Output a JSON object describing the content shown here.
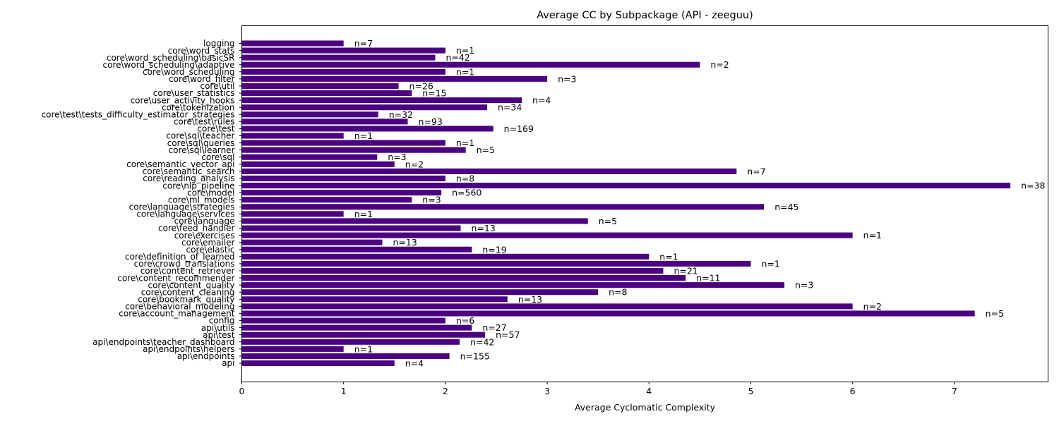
{
  "chart_data": {
    "type": "bar",
    "orientation": "horizontal",
    "title": "Average CC by Subpackage (API - zeeguu)",
    "xlabel": "Average Cyclomatic Complexity",
    "ylabel": "",
    "xlim": [
      0,
      7.92
    ],
    "xticks": [
      "0",
      "1",
      "2",
      "3",
      "4",
      "5",
      "6",
      "7"
    ],
    "grid": false,
    "bar_color": "#4b0082",
    "categories": [
      "api",
      "api\\endpoints",
      "api\\endpoints\\helpers",
      "api\\endpoints\\teacher_dashboard",
      "api\\test",
      "api\\utils",
      "config",
      "core\\account_management",
      "core\\behavioral_modeling",
      "core\\bookmark_quality",
      "core\\content_cleaning",
      "core\\content_quality",
      "core\\content_recommender",
      "core\\content_retriever",
      "core\\crowd_translations",
      "core\\definition_of_learned",
      "core\\elastic",
      "core\\emailer",
      "core\\exercises",
      "core\\feed_handler",
      "core\\language",
      "core\\language\\services",
      "core\\language\\strategies",
      "core\\ml_models",
      "core\\model",
      "core\\nlp_pipeline",
      "core\\reading_analysis",
      "core\\semantic_search",
      "core\\semantic_vector_api",
      "core\\sql",
      "core\\sql\\learner",
      "core\\sql\\queries",
      "core\\sql\\teacher",
      "core\\test",
      "core\\test\\rules",
      "core\\test\\tests_difficulty_estimator_strategies",
      "core\\tokenization",
      "core\\user_activity_hooks",
      "core\\user_statistics",
      "core\\util",
      "core\\word_filter",
      "core\\word_scheduling",
      "core\\word_scheduling\\adaptive",
      "core\\word_scheduling\\basicSR",
      "core\\word_stats",
      "logging"
    ],
    "values": [
      1.5,
      2.04,
      1.0,
      2.14,
      2.39,
      2.26,
      2.0,
      7.2,
      6.0,
      2.61,
      3.5,
      5.33,
      4.36,
      4.14,
      5.0,
      4.0,
      2.26,
      1.38,
      6.0,
      2.15,
      3.4,
      1.0,
      5.13,
      1.67,
      1.96,
      7.55,
      2.0,
      4.86,
      1.5,
      1.33,
      2.2,
      2.0,
      1.0,
      2.47,
      1.63,
      1.34,
      2.41,
      2.75,
      1.67,
      1.54,
      3.0,
      2.0,
      4.5,
      1.9,
      2.0,
      1.0
    ],
    "bar_labels": [
      "n=4",
      "n=155",
      "n=1",
      "n=42",
      "n=57",
      "n=27",
      "n=6",
      "n=5",
      "n=2",
      "n=13",
      "n=8",
      "n=3",
      "n=11",
      "n=21",
      "n=1",
      "n=1",
      "n=19",
      "n=13",
      "n=1",
      "n=13",
      "n=5",
      "n=1",
      "n=45",
      "n=3",
      "n=560",
      "n=38",
      "n=8",
      "n=7",
      "n=2",
      "n=3",
      "n=5",
      "n=1",
      "n=1",
      "n=169",
      "n=93",
      "n=32",
      "n=34",
      "n=4",
      "n=15",
      "n=26",
      "n=3",
      "n=1",
      "n=2",
      "n=42",
      "n=1",
      "n=7"
    ]
  }
}
